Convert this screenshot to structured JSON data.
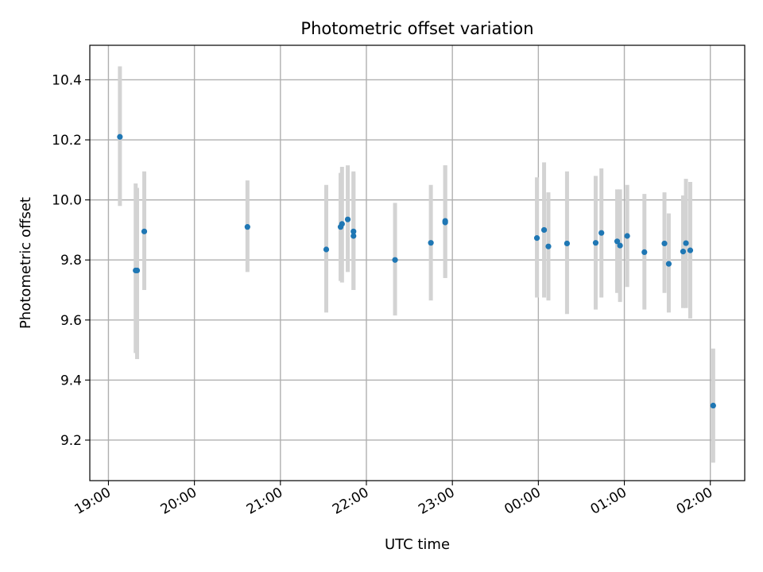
{
  "chart_data": {
    "type": "scatter",
    "title": "Photometric offset variation",
    "xlabel": "UTC time",
    "ylabel": "Photometric offset",
    "grid": true,
    "x_ticks": [
      "19:00",
      "20:00",
      "21:00",
      "22:00",
      "23:00",
      "00:00",
      "01:00",
      "02:00"
    ],
    "y_ticks": [
      "9.2",
      "9.4",
      "9.6",
      "9.8",
      "10.0",
      "10.2",
      "10.4"
    ],
    "xlim": [
      "18:47",
      "02:24"
    ],
    "ylim": [
      9.065,
      10.515
    ],
    "point_color": "#1f77b4",
    "errorbar_color": "#d3d3d3",
    "series": [
      {
        "points": [
          {
            "x": "19:08",
            "y": 10.21,
            "ylow": 9.98,
            "yhigh": 10.445
          },
          {
            "x": "19:19",
            "y": 9.765,
            "ylow": 9.49,
            "yhigh": 10.055
          },
          {
            "x": "19:20",
            "y": 9.765,
            "ylow": 9.47,
            "yhigh": 10.04
          },
          {
            "x": "19:25",
            "y": 9.895,
            "ylow": 9.7,
            "yhigh": 10.095
          },
          {
            "x": "20:37",
            "y": 9.91,
            "ylow": 9.76,
            "yhigh": 10.065
          },
          {
            "x": "21:32",
            "y": 9.835,
            "ylow": 9.625,
            "yhigh": 10.05
          },
          {
            "x": "21:42",
            "y": 9.91,
            "ylow": 9.73,
            "yhigh": 10.09
          },
          {
            "x": "21:43",
            "y": 9.92,
            "ylow": 9.725,
            "yhigh": 10.11
          },
          {
            "x": "21:47",
            "y": 9.935,
            "ylow": 9.76,
            "yhigh": 10.115
          },
          {
            "x": "21:51",
            "y": 9.895,
            "ylow": 9.7,
            "yhigh": 10.095
          },
          {
            "x": "21:51",
            "y": 9.88,
            "ylow": 9.7,
            "yhigh": 10.09
          },
          {
            "x": "22:20",
            "y": 9.8,
            "ylow": 9.615,
            "yhigh": 9.99
          },
          {
            "x": "22:45",
            "y": 9.857,
            "ylow": 9.665,
            "yhigh": 10.05
          },
          {
            "x": "22:55",
            "y": 9.93,
            "ylow": 9.74,
            "yhigh": 10.115
          },
          {
            "x": "22:55",
            "y": 9.925,
            "ylow": 9.74,
            "yhigh": 10.115
          },
          {
            "x": "23:59",
            "y": 9.873,
            "ylow": 9.675,
            "yhigh": 10.075
          },
          {
            "x": "00:04",
            "y": 9.9,
            "ylow": 9.675,
            "yhigh": 10.125
          },
          {
            "x": "00:07",
            "y": 9.845,
            "ylow": 9.665,
            "yhigh": 10.025
          },
          {
            "x": "00:20",
            "y": 9.855,
            "ylow": 9.62,
            "yhigh": 10.095
          },
          {
            "x": "00:40",
            "y": 9.857,
            "ylow": 9.635,
            "yhigh": 10.08
          },
          {
            "x": "00:44",
            "y": 9.89,
            "ylow": 9.675,
            "yhigh": 10.105
          },
          {
            "x": "00:55",
            "y": 9.862,
            "ylow": 9.69,
            "yhigh": 10.035
          },
          {
            "x": "00:57",
            "y": 9.848,
            "ylow": 9.66,
            "yhigh": 10.035
          },
          {
            "x": "01:02",
            "y": 9.88,
            "ylow": 9.71,
            "yhigh": 10.05
          },
          {
            "x": "01:14",
            "y": 9.826,
            "ylow": 9.635,
            "yhigh": 10.02
          },
          {
            "x": "01:28",
            "y": 9.855,
            "ylow": 9.69,
            "yhigh": 10.025
          },
          {
            "x": "01:31",
            "y": 9.787,
            "ylow": 9.625,
            "yhigh": 9.955
          },
          {
            "x": "01:41",
            "y": 9.828,
            "ylow": 9.64,
            "yhigh": 10.015
          },
          {
            "x": "01:43",
            "y": 9.856,
            "ylow": 9.64,
            "yhigh": 10.07
          },
          {
            "x": "01:46",
            "y": 9.832,
            "ylow": 9.605,
            "yhigh": 10.06
          },
          {
            "x": "02:02",
            "y": 9.315,
            "ylow": 9.125,
            "yhigh": 9.505
          }
        ]
      }
    ]
  }
}
